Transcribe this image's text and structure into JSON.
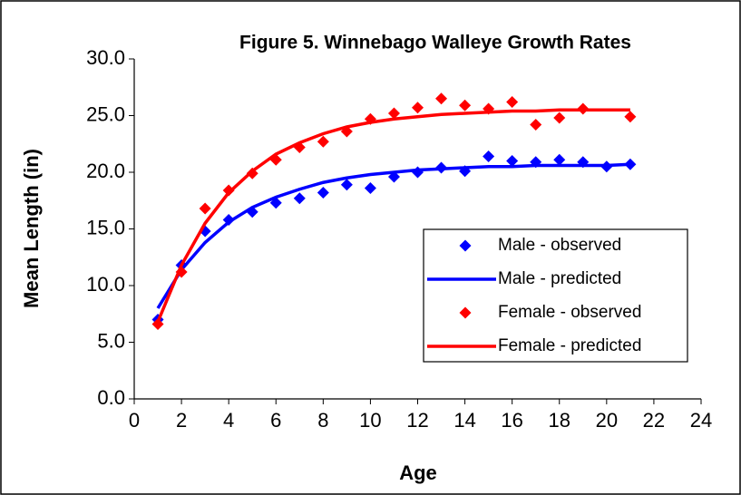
{
  "chart_data": {
    "type": "line",
    "title": "Figure 5.  Winnebago Walleye Growth Rates",
    "xlabel": "Age",
    "ylabel": "Mean Length (in)",
    "xlim": [
      0,
      24
    ],
    "xticks": [
      0,
      2,
      4,
      6,
      8,
      10,
      12,
      14,
      16,
      18,
      20,
      22,
      24
    ],
    "ylim": [
      0,
      30
    ],
    "yticks": [
      {
        "value": 0,
        "label": "0.0"
      },
      {
        "value": 5,
        "label": "5.0"
      },
      {
        "value": 10,
        "label": "10.0"
      },
      {
        "value": 15,
        "label": "15.0"
      },
      {
        "value": 20,
        "label": "20.0"
      },
      {
        "value": 25,
        "label": "25.0"
      },
      {
        "value": 30,
        "label": "30.0"
      }
    ],
    "legend": "right",
    "series": [
      {
        "name": "Male - observed",
        "color": "#0000ff",
        "style": "marker",
        "x": [
          1,
          2,
          3,
          4,
          5,
          6,
          7,
          8,
          9,
          10,
          11,
          12,
          13,
          14,
          15,
          16,
          17,
          18,
          19,
          20,
          21
        ],
        "values": [
          7.0,
          11.8,
          14.8,
          15.8,
          16.5,
          17.3,
          17.7,
          18.2,
          18.9,
          18.6,
          19.6,
          20.0,
          20.4,
          20.1,
          21.4,
          21.0,
          20.9,
          21.1,
          20.9,
          20.5,
          20.7
        ]
      },
      {
        "name": "Male - predicted",
        "color": "#0000ff",
        "style": "line",
        "x": [
          1,
          2,
          3,
          4,
          5,
          6,
          7,
          8,
          9,
          10,
          11,
          12,
          13,
          14,
          15,
          16,
          17,
          18,
          19,
          20,
          21
        ],
        "values": [
          8.0,
          11.4,
          13.8,
          15.6,
          16.9,
          17.8,
          18.5,
          19.1,
          19.5,
          19.8,
          20.0,
          20.2,
          20.3,
          20.4,
          20.5,
          20.5,
          20.6,
          20.6,
          20.6,
          20.6,
          20.7
        ]
      },
      {
        "name": "Female - observed",
        "color": "#ff0000",
        "style": "marker",
        "x": [
          1,
          2,
          3,
          4,
          5,
          6,
          7,
          8,
          9,
          10,
          11,
          12,
          13,
          14,
          15,
          16,
          17,
          18,
          19,
          21
        ],
        "values": [
          6.6,
          11.2,
          16.8,
          18.4,
          19.9,
          21.1,
          22.2,
          22.7,
          23.6,
          24.7,
          25.2,
          25.7,
          26.5,
          25.9,
          25.6,
          26.2,
          24.2,
          24.8,
          25.6,
          24.9
        ]
      },
      {
        "name": "Female - predicted",
        "color": "#ff0000",
        "style": "line",
        "x": [
          1,
          2,
          3,
          4,
          5,
          6,
          7,
          8,
          9,
          10,
          11,
          12,
          13,
          14,
          15,
          16,
          17,
          18,
          19,
          20,
          21
        ],
        "values": [
          6.8,
          11.8,
          15.5,
          18.2,
          20.1,
          21.6,
          22.6,
          23.4,
          24.0,
          24.4,
          24.7,
          24.9,
          25.1,
          25.2,
          25.3,
          25.4,
          25.4,
          25.5,
          25.5,
          25.5,
          25.5
        ]
      }
    ]
  }
}
